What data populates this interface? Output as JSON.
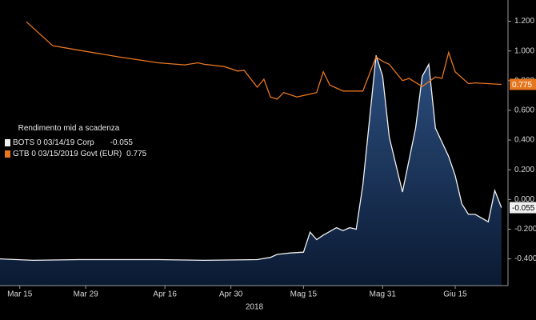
{
  "chart_data": {
    "type": "line",
    "legend_title": "Rendimento mid a scadenza",
    "x_label": "2018",
    "xlim": [
      "2018-03-12",
      "2018-06-27"
    ],
    "xticks": [
      {
        "value": "2018-03-15",
        "label": "Mar 15"
      },
      {
        "value": "2018-03-29",
        "label": "Mar 29"
      },
      {
        "value": "2018-04-16",
        "label": "Apr 16"
      },
      {
        "value": "2018-04-30",
        "label": "Apr 30"
      },
      {
        "value": "2018-05-15",
        "label": "Mag 15"
      },
      {
        "value": "2018-05-31",
        "label": "Mag 31"
      },
      {
        "value": "2018-06-15",
        "label": "Giu 15"
      }
    ],
    "ylim": [
      -0.58,
      1.3
    ],
    "yticks": [
      {
        "value": 1.2,
        "label": "1.200"
      },
      {
        "value": 1.0,
        "label": "1.000"
      },
      {
        "value": 0.8,
        "label": "0.800"
      },
      {
        "value": 0.6,
        "label": "0.600"
      },
      {
        "value": 0.4,
        "label": "0.400"
      },
      {
        "value": 0.2,
        "label": "0.200"
      },
      {
        "value": 0.0,
        "label": "0.000"
      },
      {
        "value": -0.2,
        "label": "-0.200"
      },
      {
        "value": -0.4,
        "label": "-0.400"
      }
    ],
    "series": [
      {
        "name": "BOTS 0 03/14/19 Corp",
        "color": "#f0f0f0",
        "area_color": "#1c3a63",
        "area": true,
        "x": [
          "2018-03-12",
          "2018-03-19",
          "2018-03-28",
          "2018-04-13",
          "2018-04-24",
          "2018-05-04",
          "2018-05-08",
          "2018-05-09",
          "2018-05-11",
          "2018-05-15",
          "2018-05-16",
          "2018-05-17",
          "2018-05-18",
          "2018-05-22",
          "2018-05-23",
          "2018-05-24",
          "2018-05-25",
          "2018-05-28",
          "2018-05-30",
          "2018-05-31",
          "2018-06-01",
          "2018-06-05",
          "2018-06-07",
          "2018-06-08",
          "2018-06-11",
          "2018-06-12",
          "2018-06-14",
          "2018-06-15",
          "2018-06-18",
          "2018-06-19",
          "2018-06-20",
          "2018-06-22",
          "2018-06-25",
          "2018-06-26"
        ],
        "values": [
          -0.4,
          -0.41,
          -0.405,
          -0.405,
          -0.41,
          -0.405,
          -0.39,
          -0.37,
          -0.36,
          -0.355,
          -0.22,
          -0.27,
          -0.24,
          -0.19,
          -0.21,
          -0.19,
          -0.2,
          0.1,
          0.97,
          0.83,
          0.42,
          0.05,
          0.48,
          0.83,
          0.91,
          0.48,
          0.29,
          0.16,
          -0.03,
          -0.1,
          -0.1,
          -0.15,
          0.06,
          -0.055
        ]
      },
      {
        "name": "GTB 0 03/15/2019 Govt (EUR)",
        "color": "#e8761f",
        "area": false,
        "x": [
          "2018-03-16",
          "2018-03-22",
          "2018-03-28",
          "2018-04-05",
          "2018-04-13",
          "2018-04-19",
          "2018-04-23",
          "2018-04-24",
          "2018-04-27",
          "2018-05-01",
          "2018-05-02",
          "2018-05-04",
          "2018-05-07",
          "2018-05-08",
          "2018-05-09",
          "2018-05-10",
          "2018-05-14",
          "2018-05-15",
          "2018-05-17",
          "2018-05-18",
          "2018-05-21",
          "2018-05-23",
          "2018-05-28",
          "2018-05-30",
          "2018-05-31",
          "2018-06-01",
          "2018-06-05",
          "2018-06-06",
          "2018-06-08",
          "2018-06-12",
          "2018-06-13",
          "2018-06-14",
          "2018-06-15",
          "2018-06-19",
          "2018-06-20",
          "2018-06-26"
        ],
        "values": [
          1.196,
          1.035,
          1.005,
          0.96,
          0.92,
          0.906,
          0.92,
          0.91,
          0.895,
          0.865,
          0.87,
          0.756,
          0.81,
          0.69,
          0.675,
          0.72,
          0.69,
          0.7,
          0.72,
          0.86,
          0.77,
          0.73,
          0.73,
          0.96,
          0.93,
          0.91,
          0.8,
          0.815,
          0.76,
          0.825,
          0.815,
          0.99,
          0.86,
          0.78,
          0.785,
          0.775
        ]
      }
    ]
  }
}
